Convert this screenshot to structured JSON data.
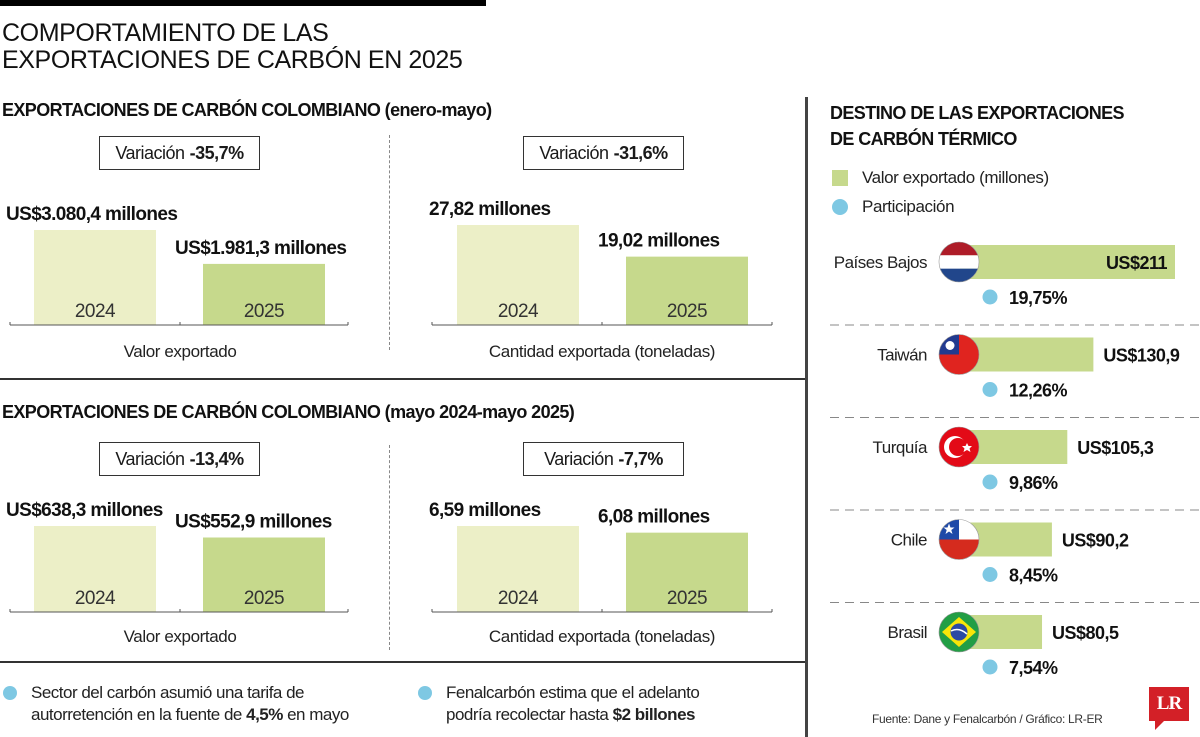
{
  "header": {
    "title_line1": "COMPORTAMIENTO DE LAS",
    "title_line2": "EXPORTACIONES DE CARBÓN EN 2025"
  },
  "sections": [
    {
      "title": "EXPORTACIONES DE CARBÓN COLOMBIANO (enero-mayo)",
      "panels": [
        {
          "variation_label": "Variación",
          "variation_value": "-35,7%",
          "caption": "Valor exportado",
          "bars": [
            {
              "year": "2024",
              "label": "US$3.080,4 millones",
              "value": 3080.4
            },
            {
              "year": "2025",
              "label": "US$1.981,3 millones",
              "value": 1981.3
            }
          ]
        },
        {
          "variation_label": "Variación",
          "variation_value": "-31,6%",
          "caption": "Cantidad exportada (toneladas)",
          "bars": [
            {
              "year": "2024",
              "label": "27,82 millones",
              "value": 27.82
            },
            {
              "year": "2025",
              "label": "19,02 millones",
              "value": 19.02
            }
          ]
        }
      ]
    },
    {
      "title": "EXPORTACIONES DE CARBÓN COLOMBIANO (mayo 2024-mayo 2025)",
      "panels": [
        {
          "variation_label": "Variación",
          "variation_value": "-13,4%",
          "caption": "Valor exportado",
          "bars": [
            {
              "year": "2024",
              "label": "US$638,3 millones",
              "value": 638.3
            },
            {
              "year": "2025",
              "label": "US$552,9 millones",
              "value": 552.9
            }
          ]
        },
        {
          "variation_label": "Variación",
          "variation_value": "-7,7%",
          "caption": "Cantidad exportada (toneladas)",
          "bars": [
            {
              "year": "2024",
              "label": "6,59 millones",
              "value": 6.59
            },
            {
              "year": "2025",
              "label": "6,08 millones",
              "value": 6.08
            }
          ]
        }
      ]
    }
  ],
  "notes": [
    {
      "line1": "Sector del carbón asumió una tarifa de",
      "line2_pre": "autorretención en la fuente de ",
      "line2_bold": "4,5%",
      "line2_post": " en mayo"
    },
    {
      "line1": "Fenalcarbón estima que el adelanto",
      "line2_pre": "podría recolectar hasta ",
      "line2_bold": "$2 billones",
      "line2_post": ""
    }
  ],
  "destinations": {
    "title_line1": "DESTINO DE LAS EXPORTACIONES",
    "title_line2": "DE CARBÓN TÉRMICO",
    "legend": [
      {
        "label": "Valor exportado (millones)",
        "icon": "green-square"
      },
      {
        "label": "Participación",
        "icon": "blue-dot"
      }
    ]
  },
  "colors": {
    "bar_2024": "#ecefc7",
    "bar_2025": "#c6d98c",
    "dest_bar": "#c6d98c",
    "share_dot": "#7ec8e3",
    "logo_red": "#d32027"
  },
  "chart_data": [
    {
      "type": "bar",
      "title": "EXPORTACIONES DE CARBÓN COLOMBIANO (enero-mayo) — Valor exportado",
      "categories": [
        "2024",
        "2025"
      ],
      "values": [
        3080.4,
        1981.3
      ],
      "unit": "US$ millones",
      "annotation": "Variación -35,7%"
    },
    {
      "type": "bar",
      "title": "EXPORTACIONES DE CARBÓN COLOMBIANO (enero-mayo) — Cantidad exportada (toneladas)",
      "categories": [
        "2024",
        "2025"
      ],
      "values": [
        27.82,
        19.02
      ],
      "unit": "millones de toneladas",
      "annotation": "Variación -31,6%"
    },
    {
      "type": "bar",
      "title": "EXPORTACIONES DE CARBÓN COLOMBIANO (mayo 2024-mayo 2025) — Valor exportado",
      "categories": [
        "2024",
        "2025"
      ],
      "values": [
        638.3,
        552.9
      ],
      "unit": "US$ millones",
      "annotation": "Variación -13,4%"
    },
    {
      "type": "bar",
      "title": "EXPORTACIONES DE CARBÓN COLOMBIANO (mayo 2024-mayo 2025) — Cantidad exportada (toneladas)",
      "categories": [
        "2024",
        "2025"
      ],
      "values": [
        6.59,
        6.08
      ],
      "unit": "millones de toneladas",
      "annotation": "Variación -7,7%"
    },
    {
      "type": "bar",
      "orientation": "horizontal",
      "title": "DESTINO DE LAS EXPORTACIONES DE CARBÓN TÉRMICO",
      "legend": [
        "Valor exportado (millones)",
        "Participación"
      ],
      "categories": [
        "Países Bajos",
        "Taiwán",
        "Turquía",
        "Chile",
        "Brasil"
      ],
      "series": [
        {
          "name": "Valor exportado (millones)",
          "values": [
            211,
            130.9,
            105.3,
            90.2,
            80.5
          ],
          "labels": [
            "US$211",
            "US$130,9",
            "US$105,3",
            "US$90,2",
            "US$80,5"
          ]
        },
        {
          "name": "Participación",
          "values": [
            19.75,
            12.26,
            9.86,
            8.45,
            7.54
          ],
          "labels": [
            "19,75%",
            "12,26%",
            "9,86%",
            "8,45%",
            "7,54%"
          ]
        }
      ],
      "flags": [
        "netherlands-flag",
        "taiwan-flag",
        "turkey-flag",
        "chile-flag",
        "brazil-flag"
      ]
    }
  ],
  "footer": {
    "source": "Fuente: Dane y Fenalcarbón / Gráfico: LR-ER",
    "logo_text": "LR"
  }
}
